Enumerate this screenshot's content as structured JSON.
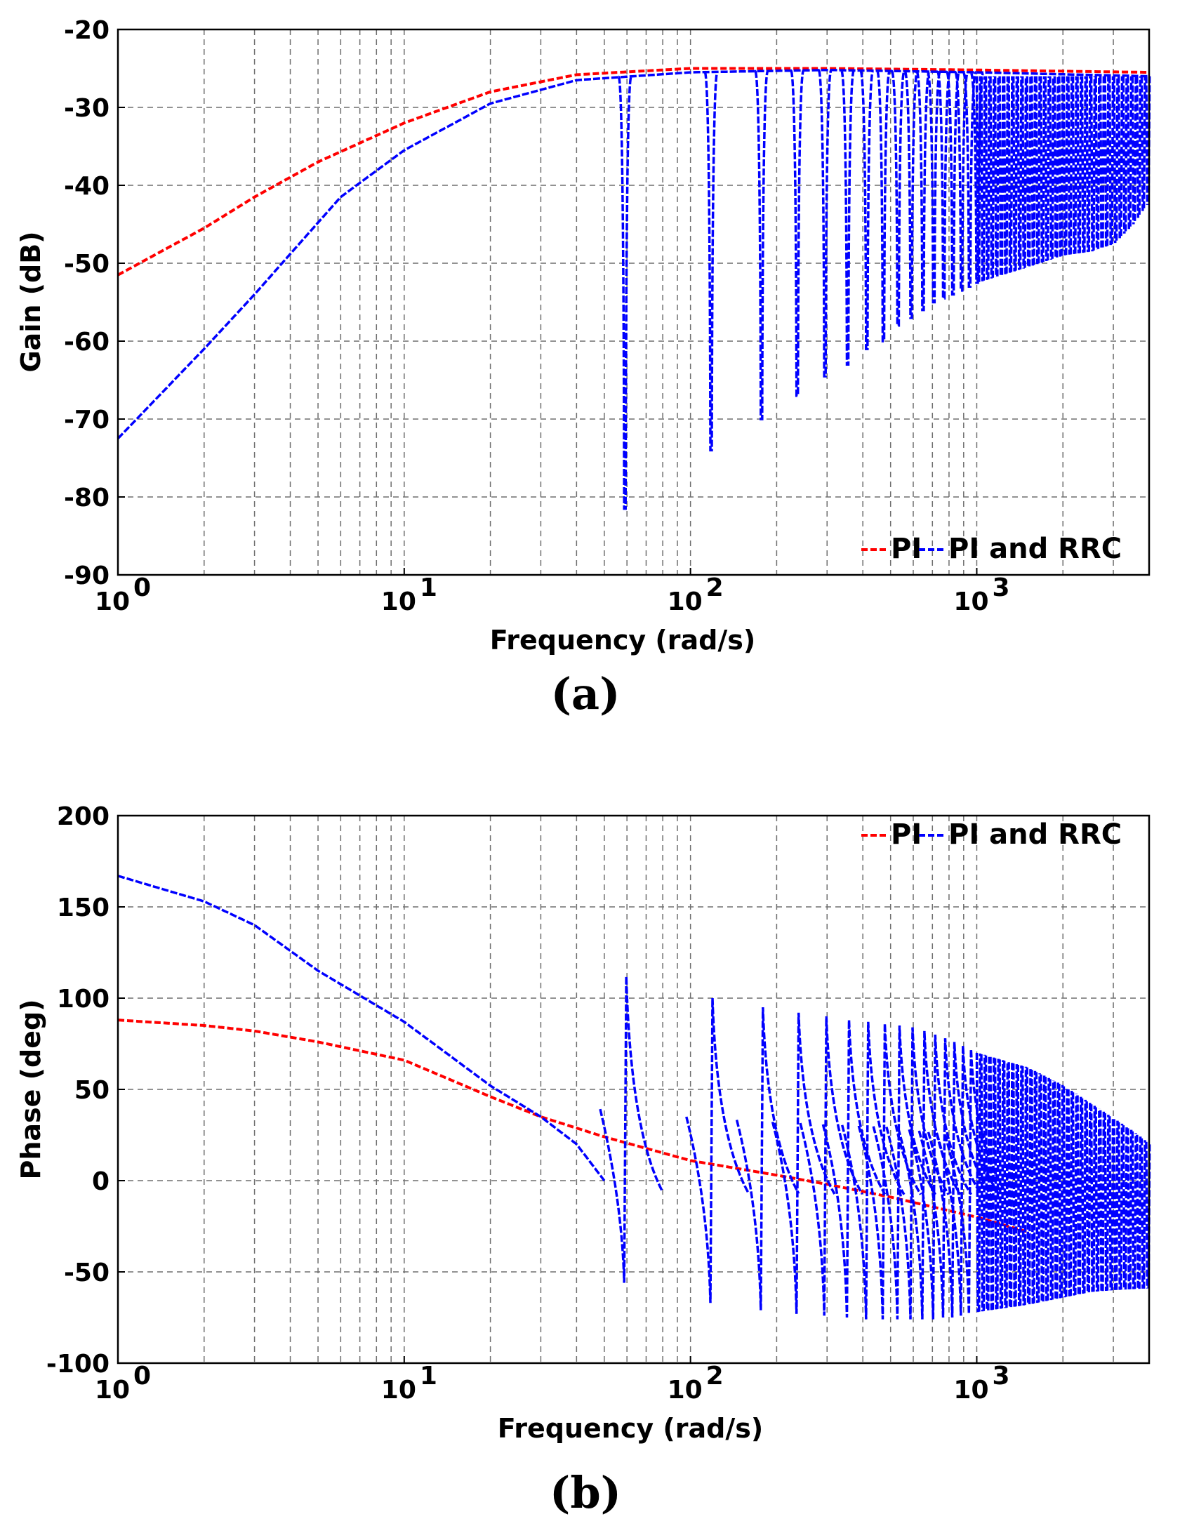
{
  "chart_data": [
    {
      "id": "a",
      "type": "line",
      "panel_label": "(a)",
      "xscale": "log",
      "xlim": [
        1,
        4000
      ],
      "ylim": [
        -90,
        -20
      ],
      "xlabel": "Frequency  (rad/s)",
      "ylabel": "Gain  (dB)",
      "xticks": [
        {
          "value": 1,
          "base": "10",
          "exp": "0"
        },
        {
          "value": 10,
          "base": "10",
          "exp": "1"
        },
        {
          "value": 100,
          "base": "10",
          "exp": "2"
        },
        {
          "value": 1000,
          "base": "10",
          "exp": "3"
        }
      ],
      "yticks": [
        "-20",
        "-30",
        "-40",
        "-50",
        "-60",
        "-70",
        "-80",
        "-90"
      ],
      "legend_position": "bottom-right",
      "grid": true,
      "series": [
        {
          "name": "PI",
          "color": "#ff0000",
          "points": [
            [
              1,
              -51.5
            ],
            [
              2,
              -45.5
            ],
            [
              3,
              -41.5
            ],
            [
              5,
              -37
            ],
            [
              10,
              -32
            ],
            [
              20,
              -28
            ],
            [
              40,
              -25.8
            ],
            [
              100,
              -25
            ],
            [
              300,
              -25
            ],
            [
              1000,
              -25.2
            ],
            [
              4000,
              -25.5
            ]
          ]
        },
        {
          "name": "PI and RRC",
          "color": "#0000ff",
          "base_points": [
            [
              1,
              -72.5
            ],
            [
              2,
              -61
            ],
            [
              3,
              -54
            ],
            [
              6,
              -41.5
            ],
            [
              10,
              -35.5
            ],
            [
              20,
              -29.5
            ],
            [
              40,
              -26.5
            ],
            [
              100,
              -25.5
            ],
            [
              300,
              -25.2
            ],
            [
              1000,
              -25.5
            ],
            [
              4000,
              -26
            ]
          ],
          "resonances": [
            {
              "f": 59,
              "depth": -81.5
            },
            {
              "f": 118,
              "depth": -74
            },
            {
              "f": 177,
              "depth": -70
            },
            {
              "f": 236,
              "depth": -67
            },
            {
              "f": 295,
              "depth": -64.5
            },
            {
              "f": 354,
              "depth": -63
            },
            {
              "f": 413,
              "depth": -61
            },
            {
              "f": 472,
              "depth": -60
            },
            {
              "f": 531,
              "depth": -58
            },
            {
              "f": 590,
              "depth": -57
            },
            {
              "f": 649,
              "depth": -56
            },
            {
              "f": 708,
              "depth": -55
            },
            {
              "f": 767,
              "depth": -54.5
            },
            {
              "f": 826,
              "depth": -54
            },
            {
              "f": 885,
              "depth": -53.5
            },
            {
              "f": 944,
              "depth": -53
            },
            {
              "f": 1003,
              "depth": -52.5
            }
          ],
          "dense_band": {
            "from": 1000,
            "to": 4000,
            "upper": -26,
            "lower": [
              [
                1000,
                -52.5
              ],
              [
                1500,
                -50.5
              ],
              [
                2000,
                -49
              ],
              [
                2500,
                -48.5
              ],
              [
                3000,
                -47.5
              ],
              [
                3500,
                -45
              ],
              [
                4000,
                -42
              ]
            ]
          }
        }
      ]
    },
    {
      "id": "b",
      "type": "line",
      "panel_label": "(b)",
      "xscale": "log",
      "xlim": [
        1,
        4000
      ],
      "ylim": [
        -100,
        200
      ],
      "xlabel": "Frequency  (rad/s)",
      "ylabel": "Phase  (deg)",
      "xticks": [
        {
          "value": 1,
          "base": "10",
          "exp": "0"
        },
        {
          "value": 10,
          "base": "10",
          "exp": "1"
        },
        {
          "value": 100,
          "base": "10",
          "exp": "2"
        },
        {
          "value": 1000,
          "base": "10",
          "exp": "3"
        }
      ],
      "yticks": [
        "200",
        "150",
        "100",
        "50",
        "0",
        "-50",
        "-100"
      ],
      "legend_position": "top-right",
      "grid": true,
      "series": [
        {
          "name": "PI",
          "color": "#ff0000",
          "points": [
            [
              1,
              88
            ],
            [
              2,
              85
            ],
            [
              3,
              82
            ],
            [
              5,
              76
            ],
            [
              10,
              66
            ],
            [
              20,
              46
            ],
            [
              30,
              35
            ],
            [
              50,
              24
            ],
            [
              100,
              11
            ],
            [
              200,
              3
            ],
            [
              300,
              -2
            ],
            [
              500,
              -9
            ],
            [
              1000,
              -20
            ],
            [
              1500,
              -28
            ]
          ]
        },
        {
          "name": "PI and RRC",
          "color": "#0000ff",
          "base_points": [
            [
              1,
              167
            ],
            [
              2,
              153
            ],
            [
              3,
              140
            ],
            [
              5,
              115
            ],
            [
              10,
              87
            ],
            [
              20,
              52
            ],
            [
              30,
              35
            ],
            [
              40,
              20
            ],
            [
              50,
              0
            ]
          ],
          "resonances": [
            {
              "f": 59,
              "low": -56,
              "high": 112
            },
            {
              "f": 118,
              "low": -67,
              "high": 100
            },
            {
              "f": 177,
              "low": -71,
              "high": 95
            },
            {
              "f": 236,
              "low": -73,
              "high": 92
            },
            {
              "f": 295,
              "low": -74,
              "high": 90
            },
            {
              "f": 354,
              "low": -75,
              "high": 88
            },
            {
              "f": 413,
              "low": -76,
              "high": 87
            },
            {
              "f": 472,
              "low": -76,
              "high": 86
            },
            {
              "f": 531,
              "low": -76,
              "high": 85
            },
            {
              "f": 590,
              "low": -76,
              "high": 84
            },
            {
              "f": 649,
              "low": -76,
              "high": 82
            },
            {
              "f": 708,
              "low": -76,
              "high": 80
            },
            {
              "f": 767,
              "low": -75,
              "high": 78
            },
            {
              "f": 826,
              "low": -75,
              "high": 76
            },
            {
              "f": 885,
              "low": -74,
              "high": 74
            },
            {
              "f": 944,
              "low": -73,
              "high": 72
            }
          ],
          "dense_band": {
            "from": 1000,
            "to": 4000,
            "upper": [
              [
                1000,
                70
              ],
              [
                1500,
                62
              ],
              [
                2000,
                52
              ],
              [
                2500,
                42
              ],
              [
                3000,
                34
              ],
              [
                3500,
                27
              ],
              [
                4000,
                20
              ]
            ],
            "lower": [
              [
                1000,
                -72
              ],
              [
                1500,
                -68
              ],
              [
                2000,
                -64
              ],
              [
                2500,
                -61
              ],
              [
                3000,
                -60
              ],
              [
                4000,
                -59
              ]
            ]
          }
        }
      ]
    }
  ]
}
